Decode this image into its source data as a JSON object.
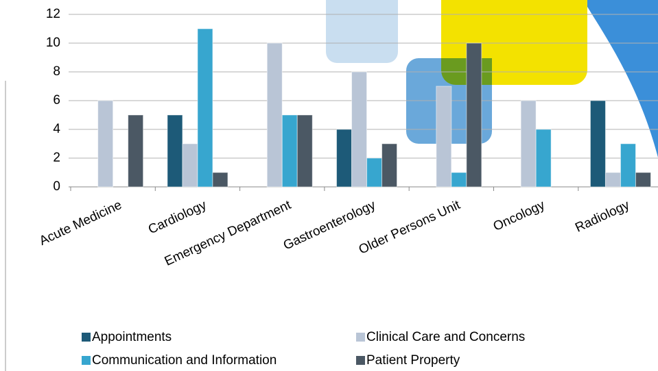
{
  "chart_data": {
    "type": "bar",
    "categories": [
      "Acute Medicine",
      "Cardiology",
      "Emergency Department",
      "Gastroenterology",
      "Older Persons Unit",
      "Oncology",
      "Radiology"
    ],
    "series": [
      {
        "name": "Appointments",
        "color": "#1d5a78",
        "values": [
          0,
          5,
          0,
          4,
          0,
          0,
          6
        ]
      },
      {
        "name": "Clinical Care and Concerns",
        "color": "#b9c5d6",
        "values": [
          6,
          3,
          10,
          8,
          7,
          6,
          1
        ]
      },
      {
        "name": "Communication and Information",
        "color": "#37a6cf",
        "values": [
          0,
          11,
          5,
          2,
          1,
          4,
          3
        ]
      },
      {
        "name": "Patient Property",
        "color": "#4b5864",
        "values": [
          5,
          1,
          5,
          3,
          10,
          0,
          1
        ]
      }
    ],
    "ylim": [
      0,
      12
    ],
    "yticks": [
      0,
      2,
      4,
      6,
      8,
      10,
      12
    ],
    "grid": true,
    "legend": "bottom"
  }
}
